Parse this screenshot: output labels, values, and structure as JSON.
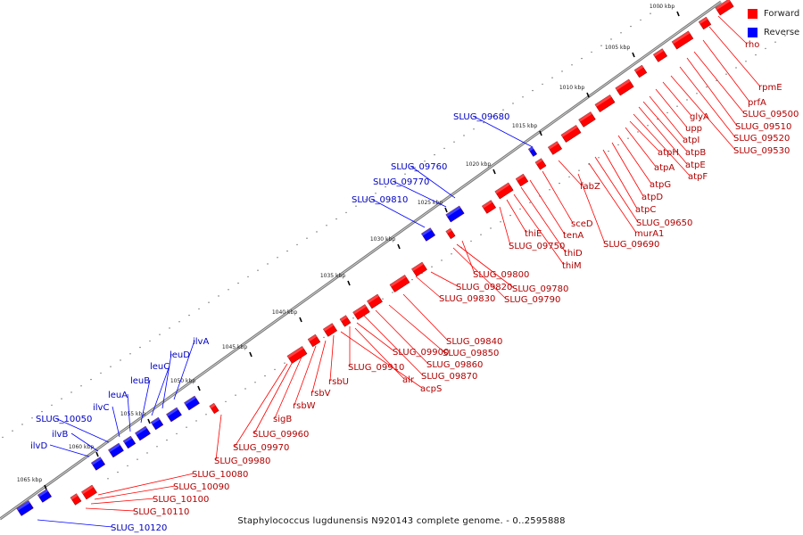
{
  "caption": "Staphylococcus lugdunensis N920143 complete genome. - 0..2595888",
  "legend": [
    {
      "label": "Forward",
      "color": "#ff0000"
    },
    {
      "label": "Reverse",
      "color": "#0000ff"
    }
  ],
  "colors": {
    "forward": "#ff0000",
    "reverse": "#0000ff",
    "axis": "#888888"
  },
  "ticks": [
    "1000 kbp",
    "1005 kbp",
    "1010 kbp",
    "1015 kbp",
    "1020 kbp",
    "1025 kbp",
    "1030 kbp",
    "1035 kbp",
    "1040 kbp",
    "1045 kbp",
    "1050 kbp",
    "1055 kbp",
    "1060 kbp",
    "1065 kbp"
  ],
  "forward_genes": [
    "rho",
    "rpmE",
    "prfA",
    "SLUG_09500",
    "SLUG_09510",
    "SLUG_09520",
    "SLUG_09530",
    "glyA",
    "upp",
    "atpI",
    "atpB",
    "atpE",
    "atpF",
    "atpH",
    "atpA",
    "atpG",
    "atpD",
    "atpC",
    "SLUG_09650",
    "murA1",
    "SLUG_09690",
    "fabZ",
    "sceD",
    "tenA",
    "thiD",
    "thiM",
    "thiE",
    "SLUG_09750",
    "SLUG_09800",
    "SLUG_09780",
    "SLUG_09790",
    "SLUG_09820",
    "SLUG_09830",
    "SLUG_09840",
    "SLUG_09850",
    "SLUG_09860",
    "SLUG_09870",
    "SLUG_09900",
    "SLUG_09910",
    "alr",
    "acpS",
    "rsbU",
    "rsbV",
    "rsbW",
    "sigB",
    "SLUG_09960",
    "SLUG_09970",
    "SLUG_09980",
    "SLUG_10080",
    "SLUG_10090",
    "SLUG_10100",
    "SLUG_10110"
  ],
  "reverse_genes": [
    "SLUG_09680",
    "SLUG_09760",
    "SLUG_09770",
    "SLUG_09810",
    "ilvA",
    "leuD",
    "leuC",
    "leuB",
    "leuA",
    "ilvC",
    "SLUG_10050",
    "ilvB",
    "ilvD",
    "SLUG_10120"
  ]
}
